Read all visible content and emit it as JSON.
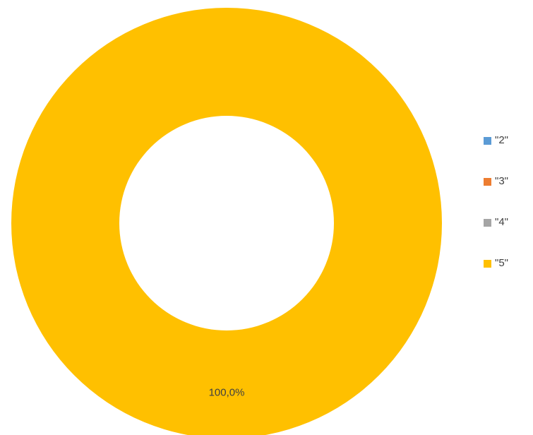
{
  "chart_data": {
    "type": "pie",
    "variant": "doughnut",
    "categories": [
      "\"2\"",
      "\"3\"",
      "\"4\"",
      "\"5\""
    ],
    "values": [
      0,
      0,
      0,
      100
    ],
    "data_labels": [
      "",
      "",
      "",
      "100,0%"
    ],
    "colors": [
      "#5b9bd5",
      "#ed7d31",
      "#a5a5a5",
      "#ffc000"
    ],
    "legend": {
      "placement": "right",
      "entries": [
        "\"2\"",
        "\"3\"",
        "\"4\"",
        "\"5\""
      ]
    }
  }
}
